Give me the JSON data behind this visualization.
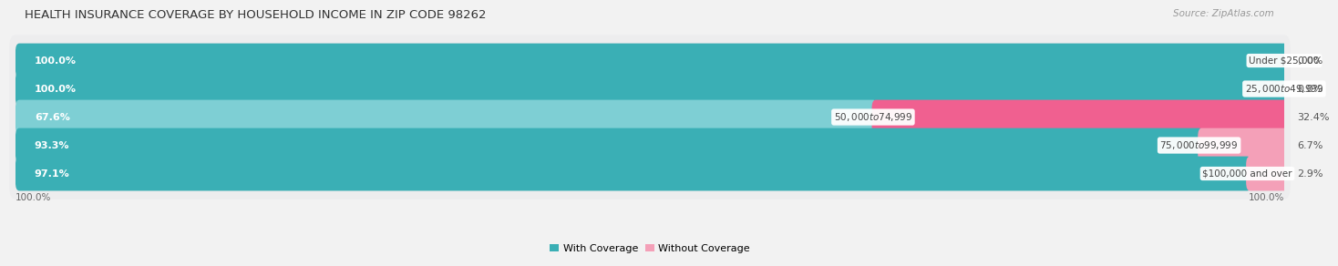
{
  "title": "HEALTH INSURANCE COVERAGE BY HOUSEHOLD INCOME IN ZIP CODE 98262",
  "source": "Source: ZipAtlas.com",
  "categories": [
    "Under $25,000",
    "$25,000 to $49,999",
    "$50,000 to $74,999",
    "$75,000 to $99,999",
    "$100,000 and over"
  ],
  "with_coverage": [
    100.0,
    100.0,
    67.6,
    93.3,
    97.1
  ],
  "without_coverage": [
    0.0,
    0.0,
    32.4,
    6.7,
    2.9
  ],
  "color_with_dark": "#3AAFB5",
  "color_with_light": "#7ECFD4",
  "color_without_dark": "#F06090",
  "color_without_light": "#F4A0B8",
  "bar_bg": "#E4E4E4",
  "row_bg": "#EDEDEE",
  "title_fontsize": 9.5,
  "source_fontsize": 7.5,
  "label_fontsize": 8,
  "category_fontsize": 7.5,
  "axis_label_fontsize": 7.5,
  "fig_width": 14.06,
  "fig_height": 2.7
}
